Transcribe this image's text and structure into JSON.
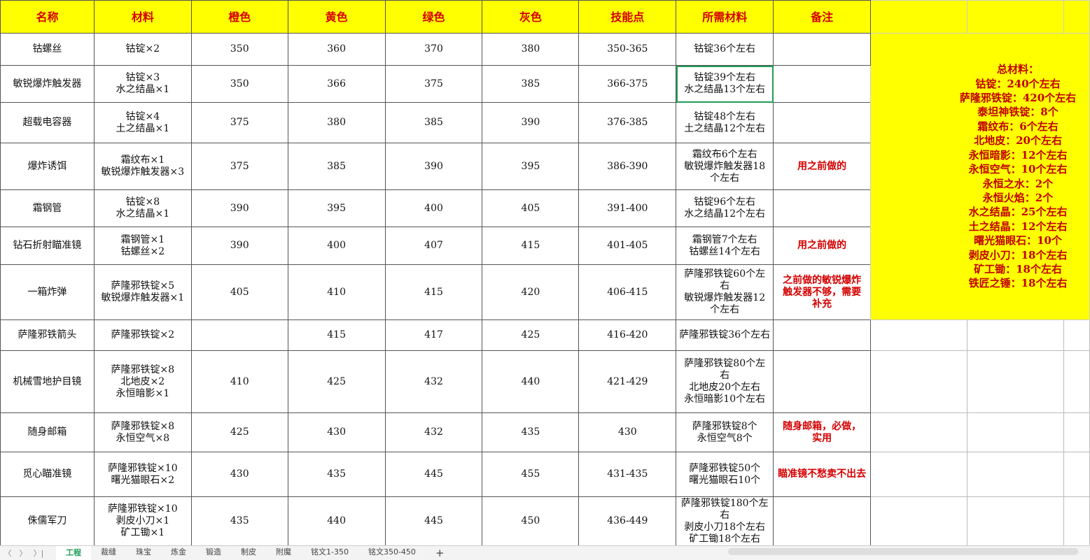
{
  "headers": [
    "名称",
    "材料",
    "橙色",
    "黄色",
    "绿色",
    "灰色",
    "技能点",
    "所需材料",
    "备注"
  ],
  "rows": [
    {
      "name": "钴螺丝",
      "mat": [
        "钴锭×2"
      ],
      "orange": "350",
      "yellow": "360",
      "green": "370",
      "gray": "380",
      "skill": "350-365",
      "need": [
        "钴锭36个左右"
      ],
      "note": []
    },
    {
      "name": "敏锐爆炸触发器",
      "mat": [
        "钴锭×3",
        "水之结晶×1"
      ],
      "orange": "350",
      "yellow": "366",
      "green": "375",
      "gray": "385",
      "skill": "366-375",
      "need": [
        "钴锭39个左右",
        "水之结晶13个左右"
      ],
      "note": []
    },
    {
      "name": "超载电容器",
      "mat": [
        "钴锭×4",
        "土之结晶×1"
      ],
      "orange": "375",
      "yellow": "380",
      "green": "385",
      "gray": "390",
      "skill": "376-385",
      "need": [
        "钴锭48个左右",
        "土之结晶12个左右"
      ],
      "note": []
    },
    {
      "name": "爆炸诱饵",
      "mat": [
        "霜纹布×1",
        "敏锐爆炸触发器×3"
      ],
      "orange": "375",
      "yellow": "385",
      "green": "390",
      "gray": "395",
      "skill": "386-390",
      "need": [
        "霜纹布6个左右",
        "敏锐爆炸触发器18",
        "个左右"
      ],
      "note": [
        "用之前做的"
      ]
    },
    {
      "name": "霜钢管",
      "mat": [
        "钴锭×8",
        "水之结晶×1"
      ],
      "orange": "390",
      "yellow": "395",
      "green": "400",
      "gray": "405",
      "skill": "391-400",
      "need": [
        "钴锭96个左右",
        "水之结晶12个左右"
      ],
      "note": []
    },
    {
      "name": "钻石折射瞄准镜",
      "mat": [
        "霜钢管×1",
        "钴螺丝×2"
      ],
      "orange": "390",
      "yellow": "400",
      "green": "407",
      "gray": "415",
      "skill": "401-405",
      "need": [
        "霜钢管7个左右",
        "钴螺丝14个左右"
      ],
      "note": [
        "用之前做的"
      ]
    },
    {
      "name": "一箱炸弹",
      "mat": [
        "萨隆邪铁锭×5",
        "敏锐爆炸触发器×1"
      ],
      "orange": "405",
      "yellow": "410",
      "green": "415",
      "gray": "420",
      "skill": "406-415",
      "need": [
        "萨隆邪铁锭60个左",
        "右",
        "敏锐爆炸触发器12",
        "个左右"
      ],
      "note": [
        "之前做的敏锐爆炸",
        "触发器不够，需要",
        "补充"
      ]
    },
    {
      "name": "萨隆邪铁箭头",
      "mat": [
        "萨隆邪铁锭×2"
      ],
      "orange": "",
      "yellow": "415",
      "green": "417",
      "gray": "425",
      "skill": "416-420",
      "need": [
        "萨隆邪铁锭36个左右"
      ],
      "note": []
    },
    {
      "name": "机械雪地护目镜",
      "mat": [
        "萨隆邪铁锭×8",
        "北地皮×2",
        "永恒暗影×1"
      ],
      "orange": "410",
      "yellow": "425",
      "green": "432",
      "gray": "440",
      "skill": "421-429",
      "need": [
        "萨隆邪铁锭80个左",
        "右",
        "北地皮20个左右",
        "永恒暗影10个左右"
      ],
      "note": []
    },
    {
      "name": "随身邮箱",
      "mat": [
        "萨隆邪铁锭×8",
        "永恒空气×8"
      ],
      "orange": "425",
      "yellow": "430",
      "green": "432",
      "gray": "435",
      "skill": "430",
      "need": [
        "萨隆邪铁锭8个",
        "永恒空气8个"
      ],
      "note": [
        "随身邮箱，必做，",
        "实用"
      ]
    },
    {
      "name": "觅心瞄准镜",
      "mat": [
        "萨隆邪铁锭×10",
        "曙光猫眼石×2"
      ],
      "orange": "430",
      "yellow": "435",
      "green": "445",
      "gray": "455",
      "skill": "431-435",
      "need": [
        "萨隆邪铁锭50个",
        "曙光猫眼石10个"
      ],
      "note": [
        "瞄准镜不愁卖不出去"
      ]
    },
    {
      "name": "侏儒军刀",
      "mat": [
        "萨隆邪铁锭×10",
        "剥皮小刀×1",
        "矿工锄×1"
      ],
      "orange": "435",
      "yellow": "440",
      "green": "445",
      "gray": "450",
      "skill": "436-449",
      "need": [
        "萨隆邪铁锭180个左",
        "右",
        "剥皮小刀18个左右",
        "矿工锄18个左右"
      ],
      "note": []
    }
  ],
  "totals": [
    "总材料：",
    "钴锭：240个左右",
    "萨隆邪铁锭：420个左右",
    "泰坦神铁锭：8个",
    "霜纹布：6个左右",
    "北地皮：20个左右",
    "永恒暗影：12个左右",
    "永恒空气：10个左右",
    "永恒之水：2个",
    "永恒火焰：2个",
    "水之结晶：25个左右",
    "土之结晶：12个左右",
    "曙光猫眼石：10个",
    "剥皮小刀：18个左右",
    "矿工锄：18个左右",
    "铁匠之锤：18个左右"
  ],
  "sheet_tabs": [
    "工程",
    "裁缝",
    "珠宝",
    "炼金",
    "锻造",
    "制皮",
    "附魔",
    "铭文1-350",
    "铭文350-450"
  ],
  "active_tab": "工程",
  "colors": {
    "header_bg": "#ffff00",
    "header_text": "#d40000",
    "note_text": "#d40000",
    "selection": "#1f9d55"
  }
}
